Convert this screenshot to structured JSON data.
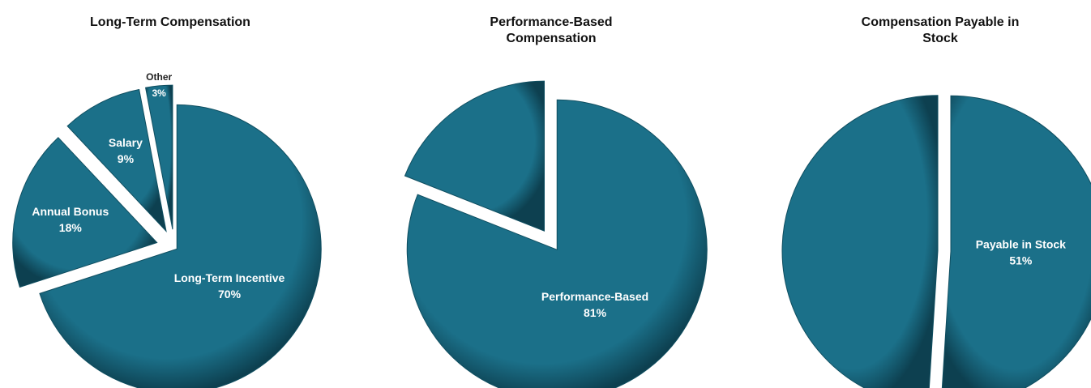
{
  "chart_data": [
    {
      "type": "pie",
      "title": "Long-Term Compensation",
      "categories": [
        "Long-Term Incentive",
        "Annual Bonus",
        "Salary",
        "Other"
      ],
      "values": [
        70,
        18,
        9,
        3
      ],
      "value_labels": [
        "70%",
        "18%",
        "9%",
        "3%"
      ],
      "color": "#1b7089"
    },
    {
      "type": "pie",
      "title": "Performance-Based Compensation",
      "categories": [
        "Performance-Based",
        null
      ],
      "values": [
        81,
        19
      ],
      "value_labels": [
        "81%",
        null
      ],
      "color": "#1b7089"
    },
    {
      "type": "pie",
      "title": "Compensation Payable in Stock",
      "categories": [
        "Payable in Stock",
        null
      ],
      "values": [
        51,
        49
      ],
      "value_labels": [
        "51%",
        null
      ],
      "color": "#1b7089"
    }
  ]
}
